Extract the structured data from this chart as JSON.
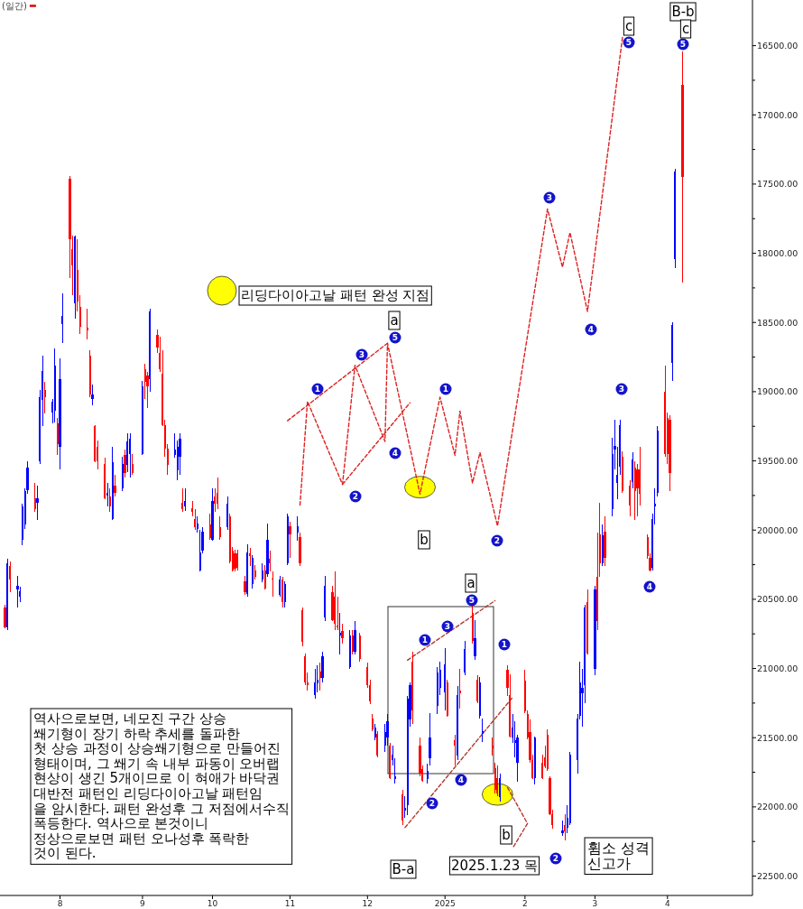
{
  "chart_data": {
    "type": "candlestick",
    "x": [
      "2024-07-10",
      "2024-07-11",
      "2024-07-12",
      "2024-07-15",
      "2024-07-16",
      "2024-07-17",
      "2024-07-18",
      "2024-07-19",
      "2024-07-22",
      "2024-07-23",
      "2024-07-24",
      "2024-07-25",
      "2024-07-26",
      "2024-07-29",
      "2024-07-30",
      "2024-07-31",
      "2024-08-01",
      "2024-08-02",
      "2024-08-05",
      "2024-08-06",
      "2024-08-07",
      "2024-08-08",
      "2024-08-09",
      "2024-08-12",
      "2024-08-13",
      "2024-08-14",
      "2024-08-15",
      "2024-08-16",
      "2024-08-19",
      "2024-08-20",
      "2024-08-21",
      "2024-08-22",
      "2024-08-23",
      "2024-08-26",
      "2024-08-27",
      "2024-08-28",
      "2024-08-29",
      "2024-08-30",
      "2024-09-03",
      "2024-09-04",
      "2024-09-05",
      "2024-09-06",
      "2024-09-09",
      "2024-09-10",
      "2024-09-11",
      "2024-09-12",
      "2024-09-13",
      "2024-09-16",
      "2024-09-17",
      "2024-09-18",
      "2024-09-19",
      "2024-09-20",
      "2024-09-23",
      "2024-09-24",
      "2024-09-25",
      "2024-09-26",
      "2024-09-27",
      "2024-09-30",
      "2024-10-01",
      "2024-10-02",
      "2024-10-03",
      "2024-10-04",
      "2024-10-07",
      "2024-10-08",
      "2024-10-09",
      "2024-10-10",
      "2024-10-11",
      "2024-10-14",
      "2024-10-15",
      "2024-10-16",
      "2024-10-17",
      "2024-10-18",
      "2024-10-21",
      "2024-10-22",
      "2024-10-23",
      "2024-10-24",
      "2024-10-25",
      "2024-10-28",
      "2024-10-29",
      "2024-10-30",
      "2024-10-31",
      "2024-11-01",
      "2024-11-04",
      "2024-11-05",
      "2024-11-06",
      "2024-11-07",
      "2024-11-08",
      "2024-11-11",
      "2024-11-12",
      "2024-11-13",
      "2024-11-14",
      "2024-11-15",
      "2024-11-18",
      "2024-11-19",
      "2024-11-20",
      "2024-11-21",
      "2024-11-22",
      "2024-11-25",
      "2024-11-26",
      "2024-11-27",
      "2024-11-29",
      "2024-12-02",
      "2024-12-03",
      "2024-12-04",
      "2024-12-05",
      "2024-12-06",
      "2024-12-09",
      "2024-12-10",
      "2024-12-11",
      "2024-12-12",
      "2024-12-13",
      "2024-12-16",
      "2024-12-17",
      "2024-12-18",
      "2024-12-19",
      "2024-12-20",
      "2024-12-23",
      "2024-12-24",
      "2024-12-26",
      "2024-12-27",
      "2024-12-30",
      "2024-12-31",
      "2025-01-02",
      "2025-01-03",
      "2025-01-06",
      "2025-01-07",
      "2025-01-08",
      "2025-01-10",
      "2025-01-13",
      "2025-01-14",
      "2025-01-15",
      "2025-01-16",
      "2025-01-17",
      "2025-01-21",
      "2025-01-22",
      "2025-01-23",
      "2025-01-24",
      "2025-01-27",
      "2025-01-28",
      "2025-01-29",
      "2025-01-30",
      "2025-01-31",
      "2025-02-03",
      "2025-02-04",
      "2025-02-05",
      "2025-02-06",
      "2025-02-07",
      "2025-02-10",
      "2025-02-11",
      "2025-02-12",
      "2025-02-13",
      "2025-02-14",
      "2025-02-18",
      "2025-02-19",
      "2025-02-20",
      "2025-02-21",
      "2025-02-24",
      "2025-02-25",
      "2025-02-26",
      "2025-02-27",
      "2025-02-28",
      "2025-03-03",
      "2025-03-04",
      "2025-03-05",
      "2025-03-06",
      "2025-03-07",
      "2025-03-10",
      "2025-03-11",
      "2025-03-12",
      "2025-03-13",
      "2025-03-14",
      "2025-03-17",
      "2025-03-18",
      "2025-03-19",
      "2025-03-20",
      "2025-03-21",
      "2025-03-24",
      "2025-03-25",
      "2025-03-26",
      "2025-03-27",
      "2025-03-28",
      "2025-03-31",
      "2025-04-01",
      "2025-04-02",
      "2025-04-03",
      "2025-04-04",
      "2025-04-07"
    ],
    "ohlc": [
      [
        20560,
        20710,
        20540,
        20700
      ],
      [
        20700,
        20720,
        20210,
        20240
      ],
      [
        20260,
        20450,
        20230,
        20360
      ],
      [
        20430,
        20560,
        20330,
        20400
      ],
      [
        20480,
        20520,
        20410,
        20440
      ],
      [
        20070,
        20110,
        19810,
        19830
      ],
      [
        19960,
        19990,
        19700,
        19720
      ],
      [
        19710,
        19740,
        19500,
        19550
      ],
      [
        19770,
        19870,
        19660,
        19850
      ],
      [
        19800,
        19930,
        19680,
        19770
      ],
      [
        19500,
        19520,
        18990,
        19040
      ],
      [
        19060,
        19250,
        18740,
        18850
      ],
      [
        18990,
        19160,
        18930,
        19040
      ],
      [
        19150,
        19230,
        19050,
        19070
      ],
      [
        19140,
        19220,
        18690,
        18810
      ],
      [
        19230,
        19460,
        19190,
        19380
      ],
      [
        19400,
        19560,
        18760,
        18910
      ],
      [
        18510,
        18650,
        18290,
        18450
      ],
      [
        17460,
        18180,
        17440,
        17900
      ],
      [
        17970,
        18300,
        17870,
        18090
      ],
      [
        18360,
        18470,
        17870,
        17880
      ],
      [
        18120,
        18420,
        17900,
        18350
      ],
      [
        18390,
        18580,
        18300,
        18530
      ],
      [
        18540,
        18620,
        18400,
        18560
      ],
      [
        18740,
        19040,
        18700,
        19020
      ],
      [
        19050,
        19100,
        18950,
        19020
      ],
      [
        19250,
        19510,
        19240,
        19500
      ],
      [
        19400,
        19560,
        19350,
        19500
      ],
      [
        19520,
        19780,
        19480,
        19770
      ],
      [
        19750,
        19830,
        19660,
        19730
      ],
      [
        19760,
        19870,
        19700,
        19830
      ],
      [
        19920,
        19930,
        19400,
        19510
      ],
      [
        19680,
        19760,
        19600,
        19730
      ],
      [
        19700,
        19720,
        19470,
        19520
      ],
      [
        19460,
        19620,
        19420,
        19590
      ],
      [
        19530,
        19580,
        19300,
        19360
      ],
      [
        19450,
        19620,
        19300,
        19340
      ],
      [
        19520,
        19600,
        19450,
        19590
      ],
      [
        19450,
        19460,
        18920,
        18960
      ],
      [
        18840,
        19050,
        18800,
        18930
      ],
      [
        18880,
        19120,
        18860,
        18960
      ],
      [
        18910,
        19000,
        18400,
        18420
      ],
      [
        18590,
        18720,
        18550,
        18680
      ],
      [
        18720,
        18860,
        18600,
        18840
      ],
      [
        18870,
        19250,
        18700,
        19240
      ],
      [
        19240,
        19470,
        19200,
        19410
      ],
      [
        19410,
        19600,
        19380,
        19530
      ],
      [
        19460,
        19480,
        19300,
        19420
      ],
      [
        19570,
        19640,
        19350,
        19400
      ],
      [
        19470,
        19600,
        19300,
        19340
      ],
      [
        19800,
        19870,
        19700,
        19850
      ],
      [
        19830,
        19860,
        19700,
        19790
      ],
      [
        19840,
        19900,
        19790,
        19870
      ],
      [
        19920,
        20000,
        19850,
        19980
      ],
      [
        19990,
        20020,
        19900,
        19950
      ],
      [
        20290,
        20300,
        20000,
        20160
      ],
      [
        20150,
        20170,
        19980,
        20010
      ],
      [
        19960,
        20070,
        19880,
        20060
      ],
      [
        20070,
        20080,
        19700,
        19790
      ],
      [
        19760,
        19870,
        19700,
        19810
      ],
      [
        19730,
        19850,
        19620,
        19810
      ],
      [
        19980,
        20070,
        19900,
        20050
      ],
      [
        19980,
        20000,
        19760,
        19810
      ],
      [
        19900,
        20240,
        19880,
        20230
      ],
      [
        20150,
        20300,
        20120,
        20290
      ],
      [
        20170,
        20300,
        20140,
        20280
      ],
      [
        20170,
        20290,
        20140,
        20270
      ],
      [
        20370,
        20470,
        20330,
        20450
      ],
      [
        20460,
        20480,
        20100,
        20160
      ],
      [
        20170,
        20260,
        20130,
        20190
      ],
      [
        20390,
        20420,
        20180,
        20200
      ],
      [
        20290,
        20360,
        20250,
        20340
      ],
      [
        20360,
        20380,
        20240,
        20290
      ],
      [
        20290,
        20430,
        20250,
        20420
      ],
      [
        20320,
        20340,
        19950,
        20070
      ],
      [
        20210,
        20300,
        20150,
        20240
      ],
      [
        20350,
        20480,
        20300,
        20360
      ],
      [
        20470,
        20480,
        20330,
        20360
      ],
      [
        20360,
        20560,
        20340,
        20520
      ],
      [
        20520,
        20560,
        20370,
        20390
      ],
      [
        20240,
        20250,
        19880,
        19900
      ],
      [
        19970,
        20200,
        19940,
        20030
      ],
      [
        20020,
        20080,
        19900,
        19970
      ],
      [
        20050,
        20260,
        20020,
        20240
      ],
      [
        20580,
        20840,
        20560,
        20810
      ],
      [
        20910,
        21120,
        20890,
        21100
      ],
      [
        21100,
        21160,
        21030,
        21120
      ],
      [
        21190,
        21220,
        21000,
        21100
      ],
      [
        21110,
        21170,
        20980,
        21080
      ],
      [
        21020,
        21160,
        20960,
        21070
      ],
      [
        21070,
        21100,
        20880,
        20910
      ],
      [
        20630,
        20660,
        20330,
        20400
      ],
      [
        20450,
        20660,
        20400,
        20650
      ],
      [
        20480,
        20720,
        20300,
        20680
      ],
      [
        20690,
        20720,
        20480,
        20700
      ],
      [
        20760,
        20900,
        20600,
        20740
      ],
      [
        20730,
        20820,
        20680,
        20780
      ],
      [
        20990,
        21000,
        20720,
        20760
      ],
      [
        20760,
        20900,
        20720,
        20880
      ],
      [
        20880,
        20900,
        20660,
        20720
      ],
      [
        20760,
        20950,
        20740,
        20930
      ],
      [
        20990,
        21140,
        20960,
        21120
      ],
      [
        21120,
        21260,
        21080,
        21240
      ],
      [
        21360,
        21450,
        21330,
        21440
      ],
      [
        21500,
        21520,
        21400,
        21430
      ],
      [
        21470,
        21640,
        21450,
        21630
      ],
      [
        21560,
        21600,
        21400,
        21460
      ],
      [
        21500,
        21560,
        21330,
        21380
      ],
      [
        21560,
        21800,
        21540,
        21790
      ],
      [
        21660,
        21700,
        21560,
        21620
      ],
      [
        21800,
        21830,
        21650,
        21780
      ],
      [
        21910,
        22130,
        21880,
        22100
      ],
      [
        22030,
        22080,
        21920,
        22010
      ],
      [
        21990,
        22060,
        21200,
        21220
      ],
      [
        21370,
        21420,
        21100,
        21120
      ],
      [
        20950,
        21400,
        20880,
        21300
      ],
      [
        21560,
        21780,
        21500,
        21760
      ],
      [
        21730,
        21820,
        21700,
        21810
      ],
      [
        21800,
        21830,
        21690,
        21740
      ],
      [
        21650,
        21700,
        21320,
        21500
      ],
      [
        21270,
        21330,
        20990,
        21030
      ],
      [
        21140,
        21190,
        20950,
        21010
      ],
      [
        21170,
        21300,
        20850,
        20970
      ],
      [
        21100,
        21350,
        21080,
        21340
      ],
      [
        21520,
        21700,
        21480,
        21560
      ],
      [
        21630,
        21660,
        21130,
        21190
      ],
      [
        21160,
        21290,
        21000,
        21180
      ],
      [
        21030,
        21050,
        20800,
        20860
      ],
      [
        20600,
        20820,
        20540,
        20800
      ],
      [
        20910,
        20940,
        20650,
        20780
      ],
      [
        21080,
        21250,
        21050,
        21240
      ],
      [
        21340,
        21360,
        21060,
        21100
      ],
      [
        21470,
        21530,
        21360,
        21450
      ],
      [
        21560,
        21630,
        21500,
        21580
      ],
      [
        21720,
        21900,
        21680,
        21880
      ],
      [
        21790,
        21920,
        21700,
        21900
      ],
      [
        21930,
        21960,
        21760,
        21790
      ],
      [
        21010,
        21200,
        20980,
        21140
      ],
      [
        21190,
        21500,
        21040,
        21490
      ],
      [
        21500,
        21540,
        21330,
        21430
      ],
      [
        21540,
        21640,
        21380,
        21520
      ],
      [
        21680,
        21820,
        21480,
        21500
      ],
      [
        21090,
        21320,
        21010,
        21310
      ],
      [
        21330,
        21510,
        21300,
        21500
      ],
      [
        21460,
        21680,
        21370,
        21660
      ],
      [
        21660,
        21800,
        21620,
        21790
      ],
      [
        21790,
        21840,
        21490,
        21500
      ],
      [
        21680,
        21800,
        21620,
        21790
      ],
      [
        21640,
        21720,
        21560,
        21710
      ],
      [
        21480,
        21740,
        21440,
        21730
      ],
      [
        21790,
        22060,
        21780,
        22050
      ],
      [
        22050,
        22160,
        22020,
        22130
      ],
      [
        22190,
        22210,
        22100,
        22170
      ],
      [
        22130,
        22240,
        22050,
        22180
      ],
      [
        22150,
        22190,
        21990,
        22080
      ],
      [
        22120,
        22130,
        21600,
        21620
      ],
      [
        21660,
        21760,
        21330,
        21360
      ],
      [
        21340,
        21370,
        20950,
        21100
      ],
      [
        21180,
        21420,
        21000,
        21140
      ],
      [
        21120,
        21250,
        20540,
        20560
      ],
      [
        20520,
        20900,
        20430,
        20890
      ],
      [
        21000,
        21050,
        20400,
        20430
      ],
      [
        20340,
        20720,
        20020,
        20660
      ],
      [
        20030,
        20340,
        19800,
        20240
      ],
      [
        20240,
        20260,
        19960,
        20040
      ],
      [
        20010,
        20260,
        19900,
        20200
      ],
      [
        19850,
        19900,
        19330,
        19450
      ],
      [
        19420,
        19560,
        19200,
        19390
      ],
      [
        19660,
        19780,
        19400,
        19600
      ],
      [
        19540,
        19600,
        19200,
        19240
      ],
      [
        19470,
        19730,
        19430,
        19720
      ],
      [
        19680,
        19900,
        19640,
        19820
      ],
      [
        19650,
        19700,
        19440,
        19490
      ],
      [
        19550,
        19930,
        19500,
        19720
      ],
      [
        19560,
        19900,
        19520,
        19700
      ],
      [
        19560,
        19820,
        19400,
        19740
      ],
      [
        20050,
        20210,
        20030,
        20190
      ],
      [
        20200,
        20300,
        20170,
        20290
      ],
      [
        20270,
        20290,
        19880,
        19920
      ],
      [
        19830,
        19960,
        19700,
        19810
      ],
      [
        19730,
        19760,
        19250,
        19280
      ],
      [
        19000,
        19470,
        18810,
        19450
      ],
      [
        19190,
        19520,
        19150,
        19450
      ],
      [
        19200,
        19720,
        19170,
        19590
      ],
      [
        18790,
        18920,
        18500,
        18520
      ],
      [
        18040,
        18110,
        17390,
        17410
      ],
      [
        16780,
        18210,
        16540,
        17450
      ]
    ],
    "colors": [
      "#ff0000",
      "#0000ff",
      "#ff0000",
      "#0000ff",
      "#0000ff",
      "#0000ff",
      "#0000ff",
      "#0000ff",
      "#ff0000",
      "#0000ff",
      "#0000ff",
      "#0000ff",
      "#ff0000",
      "#0000ff",
      "#0000ff",
      "#ff0000",
      "#0000ff",
      "#0000ff",
      "#ff0000",
      "#ff0000",
      "#0000ff",
      "#ff0000",
      "#ff0000",
      "#ff0000",
      "#ff0000",
      "#0000ff",
      "#ff0000",
      "#ff0000",
      "#ff0000",
      "#0000ff",
      "#ff0000",
      "#0000ff",
      "#ff0000",
      "#0000ff",
      "#ff0000",
      "#0000ff",
      "#0000ff",
      "#ff0000",
      "#0000ff",
      "#ff0000",
      "#ff0000",
      "#0000ff",
      "#ff0000",
      "#ff0000",
      "#ff0000",
      "#ff0000",
      "#ff0000",
      "#0000ff",
      "#0000ff",
      "#0000ff",
      "#ff0000",
      "#0000ff",
      "#ff0000",
      "#ff0000",
      "#0000ff",
      "#0000ff",
      "#0000ff",
      "#ff0000",
      "#0000ff",
      "#ff0000",
      "#ff0000",
      "#ff0000",
      "#0000ff",
      "#ff0000",
      "#ff0000",
      "#ff0000",
      "#ff0000",
      "#ff0000",
      "#0000ff",
      "#ff0000",
      "#0000ff",
      "#ff0000",
      "#0000ff",
      "#ff0000",
      "#0000ff",
      "#ff0000",
      "#ff0000",
      "#0000ff",
      "#ff0000",
      "#0000ff",
      "#0000ff",
      "#ff0000",
      "#0000ff",
      "#ff0000",
      "#ff0000",
      "#ff0000",
      "#ff0000",
      "#0000ff",
      "#0000ff",
      "#ff0000",
      "#0000ff",
      "#0000ff",
      "#ff0000",
      "#ff0000",
      "#ff0000",
      "#0000ff",
      "#ff0000",
      "#0000ff",
      "#ff0000",
      "#0000ff",
      "#ff0000",
      "#ff0000",
      "#ff0000",
      "#ff0000",
      "#0000ff",
      "#ff0000",
      "#0000ff",
      "#0000ff",
      "#ff0000",
      "#0000ff",
      "#0000ff",
      "#ff0000",
      "#0000ff",
      "#0000ff",
      "#0000ff",
      "#ff0000",
      "#ff0000",
      "#ff0000",
      "#0000ff",
      "#0000ff",
      "#0000ff",
      "#0000ff",
      "#0000ff",
      "#ff0000",
      "#ff0000",
      "#0000ff",
      "#ff0000",
      "#0000ff",
      "#ff0000",
      "#0000ff",
      "#ff0000",
      "#0000ff",
      "#0000ff",
      "#ff0000",
      "#ff0000",
      "#ff0000",
      "#0000ff",
      "#ff0000",
      "#ff0000",
      "#0000ff",
      "#0000ff",
      "#0000ff",
      "#ff0000",
      "#ff0000",
      "#ff0000",
      "#ff0000",
      "#0000ff",
      "#ff0000",
      "#ff0000",
      "#ff0000",
      "#ff0000",
      "#ff0000",
      "#0000ff",
      "#ff0000",
      "#0000ff",
      "#0000ff",
      "#0000ff",
      "#0000ff",
      "#0000ff",
      "#0000ff",
      "#ff0000",
      "#0000ff",
      "#ff0000",
      "#ff0000",
      "#0000ff",
      "#ff0000",
      "#0000ff",
      "#0000ff",
      "#0000ff",
      "#0000ff",
      "#ff0000",
      "#ff0000",
      "#0000ff",
      "#ff0000",
      "#ff0000",
      "#ff0000",
      "#ff0000",
      "#ff0000",
      "#0000ff",
      "#0000ff",
      "#0000ff",
      "#ff0000",
      "#ff0000",
      "#ff0000",
      "#0000ff",
      "#0000ff",
      "#ff0000"
    ],
    "series": [
      {
        "type": "line",
        "color": "#dd2222",
        "x": [
          "2024-10-31",
          "2024-12-10"
        ],
        "values": [
          19210,
          18650
        ]
      },
      {
        "type": "line",
        "color": "#dd2222",
        "x": [
          "2024-11-22",
          "2024-12-19"
        ],
        "values": [
          19670,
          19080
        ]
      },
      {
        "type": "line",
        "color": "#dd2222",
        "x": [
          "2024-11-05",
          "2024-11-08",
          "2024-11-22",
          "2024-11-27",
          "2024-12-09",
          "2024-12-10",
          "2024-12-23",
          "2024-12-31",
          "2025-01-06",
          "2025-01-08",
          "2025-01-13",
          "2025-01-16",
          "2025-01-23",
          "2025-02-12",
          "2025-02-18",
          "2025-02-21",
          "2025-02-28",
          "2025-03-14"
        ],
        "values": [
          19820,
          19070,
          19670,
          18810,
          19360,
          18650,
          19740,
          19040,
          19460,
          19140,
          19660,
          19440,
          19970,
          17680,
          18100,
          17850,
          18420,
          16440
        ]
      },
      {
        "type": "line",
        "color": "#b03a2e",
        "x": [
          "2024-12-18",
          "2025-01-22"
        ],
        "values": [
          20940,
          20510
        ]
      },
      {
        "type": "line",
        "color": "#b03a2e",
        "x": [
          "2024-12-17",
          "2025-01-29"
        ],
        "values": [
          22150,
          21210
        ]
      },
      {
        "type": "line",
        "color": "#b03a2e",
        "x": [
          "2025-01-27",
          "2025-02-04",
          "2025-01-29"
        ],
        "values": [
          21860,
          22120,
          22300
        ]
      },
      {
        "type": "scatter",
        "name": "리딩다이아고날 패턴 완성 지점",
        "color": "#ffff00",
        "marker": "circle",
        "x": [
          "2024-12-23",
          "2025-01-23"
        ],
        "values": [
          19690,
          21910
        ]
      }
    ],
    "line_style": "dashed",
    "legend": "top left",
    "xlim": [
      "2024-07-08",
      "2025-05-05"
    ],
    "xticks": [
      {
        "value": "2024-08-01",
        "label": "8"
      },
      {
        "value": "2024-09-03",
        "label": "9"
      },
      {
        "value": "2024-10-01",
        "label": "10"
      },
      {
        "value": "2024-11-01",
        "label": "11"
      },
      {
        "value": "2024-12-02",
        "label": "12"
      },
      {
        "value": "2025-01-02",
        "label": "2025"
      },
      {
        "value": "2025-02-03",
        "label": "2"
      },
      {
        "value": "2025-03-03",
        "label": "3"
      },
      {
        "value": "2025-04-01",
        "label": "4"
      }
    ],
    "ylim": [
      22640,
      16170
    ],
    "yticks": [
      {
        "value": 16500,
        "label": "16500.00"
      },
      {
        "value": 16750,
        "label": null
      },
      {
        "value": 17000,
        "label": "17000.00"
      },
      {
        "value": 17250,
        "label": null
      },
      {
        "value": 17500,
        "label": "17500.00"
      },
      {
        "value": 17750,
        "label": null
      },
      {
        "value": 18000,
        "label": "18000.00"
      },
      {
        "value": 18250,
        "label": null
      },
      {
        "value": 18500,
        "label": "18500.00"
      },
      {
        "value": 18750,
        "label": null
      },
      {
        "value": 19000,
        "label": "19000.00"
      },
      {
        "value": 19250,
        "label": null
      },
      {
        "value": 19500,
        "label": "19500.00"
      },
      {
        "value": 19750,
        "label": null
      },
      {
        "value": 20000,
        "label": "20000.00"
      },
      {
        "value": 20250,
        "label": null
      },
      {
        "value": 20500,
        "label": "20500.00"
      },
      {
        "value": 20750,
        "label": null
      },
      {
        "value": 21000,
        "label": "21000.00"
      },
      {
        "value": 21250,
        "label": null
      },
      {
        "value": 21500,
        "label": "21500.00"
      },
      {
        "value": 21750,
        "label": null
      },
      {
        "value": 22000,
        "label": "22000.00"
      },
      {
        "value": 22250,
        "label": null
      },
      {
        "value": 22500,
        "label": "22500.00"
      }
    ],
    "annotations": [
      "(일간)",
      "역사으로보면, 네모진 구간 상승\n쐐기형이 장기 하락 추세를 돌파한\n첫 상승 과정이 상승쐐기형으로 만들어진\n형태이며, 그 쐐기 속 내부 파동이 오버랩\n현상이 생긴 5개이므로 이 혀애가 바닥권\n대반전 패턴인 리딩다이아고날 패턴임\n을 암시한다. 패턴 완성후 그 저점에서수직\n폭등한다. 역사으로 본것이니\n정상으로보면 패턴 오나성후 폭락한\n것이 된다.",
      "휨소 성격\n신고가",
      "1",
      "2",
      "3",
      "4",
      "5",
      "a",
      "b",
      "1",
      "2",
      "3",
      "4",
      "5",
      "c",
      "3",
      "4",
      "5",
      "B-b",
      "c",
      "1",
      "3",
      "5",
      "a",
      "2",
      "4",
      "1",
      "b",
      "2",
      "B-a",
      "2025.1.23 목"
    ]
  }
}
